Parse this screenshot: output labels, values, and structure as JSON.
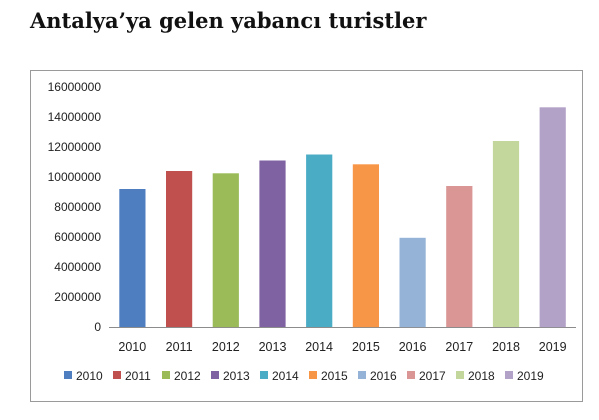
{
  "page": {
    "title": "Antalya’ya gelen yabancı turistler"
  },
  "chart_data": {
    "type": "bar",
    "categories": [
      "2010",
      "2011",
      "2012",
      "2013",
      "2014",
      "2015",
      "2016",
      "2017",
      "2018",
      "2019"
    ],
    "values": [
      9200000,
      10400000,
      10250000,
      11100000,
      11500000,
      10850000,
      5950000,
      9400000,
      12400000,
      14650000
    ],
    "colors": [
      "#4f7ec0",
      "#c0504d",
      "#9bbb59",
      "#7e62a1",
      "#4bacc6",
      "#f79646",
      "#95b3d7",
      "#d99694",
      "#c3d69b",
      "#b3a2c7"
    ],
    "ylim": [
      0,
      16000000
    ],
    "yticks": [
      "0",
      "2000000",
      "4000000",
      "6000000",
      "8000000",
      "10000000",
      "12000000",
      "14000000",
      "16000000"
    ],
    "grid": false,
    "legend_position": "bottom",
    "xlabel": "",
    "ylabel": ""
  }
}
